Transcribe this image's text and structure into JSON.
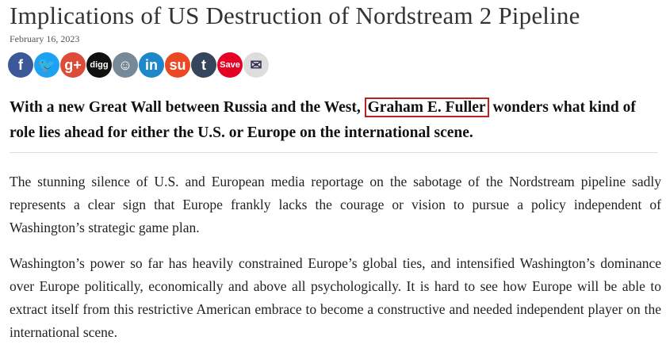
{
  "title": "Implications of US Destruction of Nordstream 2 Pipeline",
  "date": "February 16, 2023",
  "share_icons": [
    {
      "name": "facebook-icon",
      "glyph": "f",
      "color": "#3b5998"
    },
    {
      "name": "twitter-icon",
      "glyph": "🐦",
      "color": "#1da1f2"
    },
    {
      "name": "google-plus-icon",
      "glyph": "g+",
      "color": "#dd4b39"
    },
    {
      "name": "digg-icon",
      "glyph": "digg",
      "color": "#111111"
    },
    {
      "name": "reddit-icon",
      "glyph": "☺",
      "color": "#778899"
    },
    {
      "name": "linkedin-icon",
      "glyph": "in",
      "color": "#1c87c9"
    },
    {
      "name": "stumbleupon-icon",
      "glyph": "su",
      "color": "#eb4924"
    },
    {
      "name": "tumblr-icon",
      "glyph": "t",
      "color": "#35465c"
    },
    {
      "name": "pinterest-save-icon",
      "glyph": "Save",
      "color": "#e60023"
    },
    {
      "name": "email-icon",
      "glyph": "✉",
      "color": "#dddddd"
    }
  ],
  "lede": {
    "before": "With a new Great Wall between Russia and the West, ",
    "author": "Graham E. Fuller",
    "after": " wonders what kind of role lies ahead for either the U.S. or Europe on the international scene."
  },
  "paragraphs": [
    "The stunning silence of U.S. and European media reportage on the sabotage of the Nordstream pipeline sadly represents a clear sign that Europe frankly lacks the courage or vision to pursue a policy independent of Washington’s strategic game plan.",
    "Washington’s power so far has heavily constrained Europe’s global ties, and intensified Washington’s dominance over Europe politically, economically and above all psychologically. It is hard to see how Europe will be able to extract itself from this restrictive American embrace to become a constructive and needed independent player on the international scene."
  ]
}
